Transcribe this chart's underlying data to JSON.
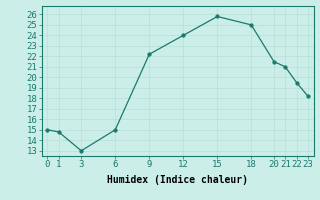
{
  "x": [
    0,
    1,
    3,
    6,
    9,
    12,
    15,
    18,
    20,
    21,
    22,
    23
  ],
  "y": [
    15,
    14.8,
    13,
    15,
    22.2,
    24,
    25.8,
    25,
    21.5,
    21,
    19.5,
    18.2
  ],
  "line_color": "#1a7a6e",
  "marker_color": "#1a7a6e",
  "bg_color": "#cceee8",
  "grid_color": "#b8ddd8",
  "xlabel": "Humidex (Indice chaleur)",
  "xlabel_fontsize": 7,
  "ylabel_ticks": [
    13,
    14,
    15,
    16,
    17,
    18,
    19,
    20,
    21,
    22,
    23,
    24,
    25,
    26
  ],
  "xlim": [
    -0.5,
    23.5
  ],
  "ylim": [
    12.5,
    26.8
  ],
  "xticks": [
    0,
    1,
    3,
    6,
    9,
    12,
    15,
    18,
    20,
    21,
    22,
    23
  ],
  "tick_fontsize": 6.5
}
